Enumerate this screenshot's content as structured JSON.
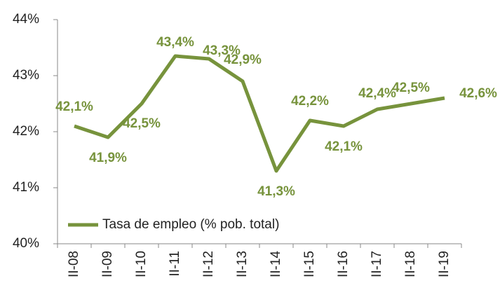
{
  "chart_data": {
    "type": "line",
    "categories": [
      "II-08",
      "II-09",
      "II-10",
      "II-11",
      "II-12",
      "II-13",
      "II-14",
      "II-15",
      "II-16",
      "II-17",
      "II-18",
      "II-19"
    ],
    "series": [
      {
        "name": "Tasa de empleo (% pob. total)",
        "color": "#77933c",
        "values": [
          42.1,
          41.9,
          42.5,
          43.35,
          43.3,
          42.9,
          41.3,
          42.2,
          42.1,
          42.4,
          42.5,
          42.6
        ],
        "value_labels": [
          "42,1%",
          "41,9%",
          "42,5%",
          "43,4%",
          "43,3%",
          "42,9%",
          "41,3%",
          "42,2%",
          "42,1%",
          "42,4%",
          "42,5%",
          "42,6%"
        ]
      }
    ],
    "ylim": [
      40,
      44
    ],
    "yticks": [
      {
        "value": 40,
        "label": "40%"
      },
      {
        "value": 41,
        "label": "41%"
      },
      {
        "value": 42,
        "label": "42%"
      },
      {
        "value": 43,
        "label": "43%"
      },
      {
        "value": 44,
        "label": "44%"
      }
    ],
    "legend": "lower-left"
  }
}
